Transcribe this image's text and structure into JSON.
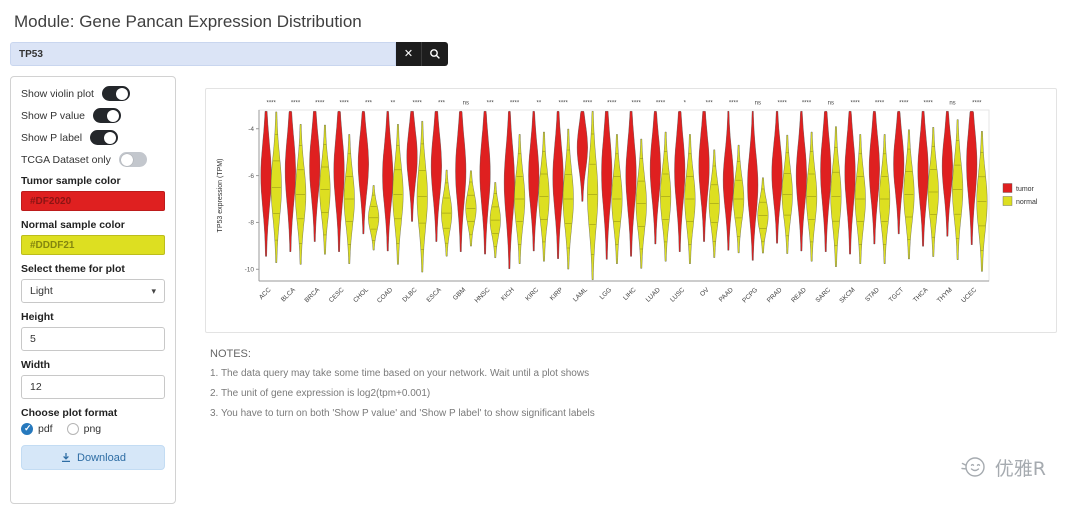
{
  "header": {
    "title": "Module: Gene Pancan Expression Distribution"
  },
  "search": {
    "value": "TP53",
    "clear_icon": "✕"
  },
  "icons": {
    "caret": "▾"
  },
  "sidebar": {
    "toggles": [
      {
        "label": "Show violin plot",
        "on": true
      },
      {
        "label": "Show P value",
        "on": true
      },
      {
        "label": "Show P label",
        "on": true
      },
      {
        "label": "TCGA Dataset only",
        "on": false
      }
    ],
    "tumor_color_label": "Tumor sample color",
    "tumor_color": "#DF2020",
    "normal_color_label": "Normal sample color",
    "normal_color": "#DDDF21",
    "theme_label": "Select theme for plot",
    "theme_value": "Light",
    "height_label": "Height",
    "height_value": "5",
    "width_label": "Width",
    "width_value": "12",
    "format_label": "Choose plot format",
    "formats": [
      {
        "label": "pdf",
        "selected": true
      },
      {
        "label": "png",
        "selected": false
      }
    ],
    "download_label": "Download"
  },
  "notes": {
    "title": "NOTES:",
    "items": [
      "1. The data query may take some time based on your network. Wait until a plot shows",
      "2. The unit of gene expression is log2(tpm+0.001)",
      "3. You have to turn on both 'Show P value' and 'Show P label' to show significant labels"
    ]
  },
  "watermark": {
    "text": "优雅R"
  },
  "chart_data": {
    "type": "violin",
    "title": "",
    "xlabel": "",
    "ylabel": "TP53 expression (TPM)",
    "ylim": [
      -10.5,
      -3.2
    ],
    "yticks": [
      -4,
      -6,
      -8,
      -10
    ],
    "grid": false,
    "legend_position": "right",
    "legend": [
      {
        "name": "tumor",
        "color": "#DF2020"
      },
      {
        "name": "normal",
        "color": "#DDDF21"
      }
    ],
    "categories": [
      "ACC",
      "BLCA",
      "BRCA",
      "CESC",
      "CHOL",
      "COAD",
      "DLBC",
      "ESCA",
      "GBM",
      "HNSC",
      "KICH",
      "KIRC",
      "KIRP",
      "LAML",
      "LGG",
      "LIHC",
      "LUAD",
      "LUSC",
      "OV",
      "PAAD",
      "PCPG",
      "PRAD",
      "READ",
      "SARC",
      "SKCM",
      "STAD",
      "TGCT",
      "THCA",
      "THYM",
      "UCEC"
    ],
    "significance": [
      "****",
      "****",
      "****",
      "****",
      "***",
      "**",
      "****",
      "***",
      "ns",
      "***",
      "****",
      "**",
      "****",
      "****",
      "****",
      "****",
      "****",
      "*",
      "***",
      "****",
      "ns",
      "****",
      "****",
      "ns",
      "****",
      "****",
      "****",
      "****",
      "ns",
      "****"
    ],
    "series": [
      {
        "name": "tumor",
        "color": "#DF2020",
        "center": [
          -6.0,
          -5.8,
          -5.6,
          -5.8,
          -5.5,
          -6.0,
          -5.2,
          -5.6,
          -5.8,
          -5.9,
          -6.3,
          -6.0,
          -6.1,
          -4.8,
          -5.9,
          -6.0,
          -5.7,
          -5.8,
          -5.6,
          -6.2,
          -6.4,
          -5.9,
          -6.0,
          -5.8,
          -5.9,
          -5.7,
          -5.5,
          -5.8,
          -5.6,
          -5.5
        ],
        "spread": [
          1.5,
          1.5,
          1.4,
          1.5,
          1.3,
          1.4,
          1.2,
          1.4,
          1.5,
          1.5,
          1.6,
          1.4,
          1.5,
          1.0,
          1.6,
          1.5,
          1.4,
          1.5,
          1.4,
          1.3,
          1.4,
          1.3,
          1.4,
          1.5,
          1.5,
          1.4,
          1.3,
          1.4,
          1.3,
          1.5
        ]
      },
      {
        "name": "normal",
        "color": "#DDDF21",
        "center": [
          -6.5,
          -6.8,
          -6.6,
          -7.0,
          -7.8,
          -6.8,
          -6.9,
          -7.6,
          -7.4,
          -7.9,
          -7.0,
          -6.9,
          -7.0,
          -6.8,
          -7.0,
          -7.2,
          -6.9,
          -7.0,
          -7.2,
          -7.0,
          -7.7,
          -6.8,
          -6.9,
          -6.9,
          -7.0,
          -7.0,
          -6.8,
          -6.7,
          -6.6,
          -7.1
        ],
        "spread": [
          1.4,
          1.3,
          1.2,
          1.2,
          0.6,
          1.3,
          1.4,
          0.8,
          0.7,
          0.7,
          1.2,
          1.2,
          1.3,
          1.6,
          1.2,
          1.2,
          1.2,
          1.2,
          1.0,
          1.0,
          0.7,
          1.1,
          1.2,
          1.3,
          1.2,
          1.2,
          1.2,
          1.2,
          1.3,
          1.3
        ]
      }
    ]
  }
}
